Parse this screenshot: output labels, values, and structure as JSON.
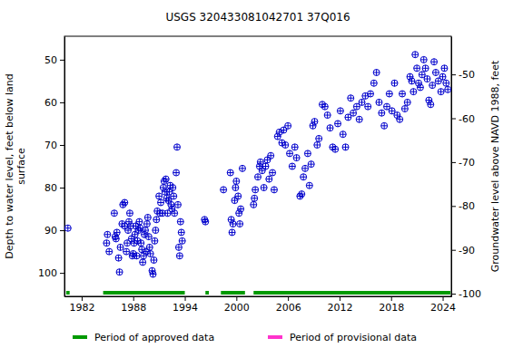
{
  "chart_data": {
    "type": "scatter",
    "title": "USGS 320433081042701 37Q016",
    "ylabel": [
      "Depth to water level, feet below land",
      "surface"
    ],
    "y2label": "Groundwater level above NAVD 1988, feet",
    "color": "#0000cc",
    "marker": "circle-plus",
    "xlim": [
      1980,
      2025
    ],
    "xticks": [
      1982,
      1988,
      1994,
      2000,
      2006,
      2012,
      2018,
      2024
    ],
    "ylim": [
      44.5,
      105.5
    ],
    "yticks": [
      50,
      60,
      70,
      80,
      90,
      100
    ],
    "y2lim": [
      -100.6,
      -41.3
    ],
    "y2ticks": [
      -50,
      -60,
      -70,
      -80,
      -90,
      -100
    ],
    "x": [
      1980.4,
      1984.9,
      1985.0,
      1985.2,
      1985.8,
      1985.9,
      1986.0,
      1986.1,
      1986.3,
      1986.4,
      1986.5,
      1986.7,
      1986.8,
      1987.0,
      1987.0,
      1987.2,
      1987.3,
      1987.4,
      1987.5,
      1987.6,
      1987.7,
      1987.8,
      1987.9,
      1988.0,
      1988.1,
      1988.2,
      1988.3,
      1988.4,
      1988.5,
      1988.6,
      1988.7,
      1988.8,
      1988.9,
      1989.0,
      1989.1,
      1989.2,
      1989.3,
      1989.4,
      1989.5,
      1989.6,
      1989.7,
      1989.8,
      1989.9,
      1990.0,
      1990.2,
      1990.3,
      1990.4,
      1990.5,
      1990.6,
      1990.7,
      1990.8,
      1991.0,
      1991.1,
      1991.2,
      1991.4,
      1991.5,
      1991.6,
      1991.7,
      1991.8,
      1991.9,
      1992.0,
      1992.1,
      1992.2,
      1992.3,
      1992.4,
      1992.5,
      1992.6,
      1992.7,
      1992.8,
      1993.0,
      1993.1,
      1993.2,
      1993.3,
      1993.4,
      1993.5,
      1993.6,
      1993.7,
      1996.3,
      1996.4,
      1998.5,
      1999.3,
      1999.4,
      1999.5,
      1999.6,
      1999.8,
      1999.9,
      2000.0,
      2000.2,
      2000.3,
      2000.4,
      2000.5,
      2000.7,
      2002.0,
      2002.1,
      2002.2,
      2002.5,
      2002.7,
      2002.8,
      2003.0,
      2003.2,
      2003.4,
      2003.6,
      2003.8,
      2004.0,
      2004.2,
      2004.4,
      2004.8,
      2005.0,
      2005.3,
      2005.5,
      2005.7,
      2006.0,
      2006.2,
      2006.5,
      2006.8,
      2007.0,
      2007.4,
      2007.6,
      2007.8,
      2008.0,
      2008.3,
      2008.5,
      2008.7,
      2008.9,
      2009.1,
      2009.4,
      2009.6,
      2010.0,
      2010.3,
      2010.6,
      2010.9,
      2011.2,
      2011.5,
      2011.8,
      2012.1,
      2012.4,
      2012.7,
      2013.0,
      2013.3,
      2013.6,
      2014.0,
      2014.3,
      2014.6,
      2015.0,
      2015.3,
      2015.6,
      2016.0,
      2016.3,
      2016.6,
      2016.9,
      2017.2,
      2017.5,
      2017.8,
      2018.1,
      2018.4,
      2018.7,
      2019.0,
      2019.3,
      2019.6,
      2019.9,
      2020.2,
      2020.4,
      2020.6,
      2020.8,
      2021.0,
      2021.2,
      2021.4,
      2021.6,
      2021.8,
      2022.0,
      2022.2,
      2022.4,
      2022.6,
      2022.8,
      2023.0,
      2023.2,
      2023.5,
      2023.8,
      2024.0,
      2024.2,
      2024.4,
      2024.6
    ],
    "values": [
      89.5,
      93,
      91,
      95,
      86,
      91.5,
      92,
      90.5,
      96.5,
      99.8,
      94,
      88.5,
      84,
      83.5,
      89,
      95,
      93,
      90,
      88,
      86,
      89,
      92,
      96,
      95.5,
      93,
      91,
      89,
      96,
      92.5,
      90,
      88,
      89.5,
      93,
      94.5,
      97.5,
      96,
      91,
      90,
      95,
      88.5,
      87,
      91.5,
      94,
      95.5,
      99.5,
      100.3,
      97,
      92.5,
      90,
      87.5,
      85.5,
      82,
      86,
      83.5,
      86,
      80,
      78.5,
      81,
      78,
      82.5,
      86,
      83,
      81,
      79.5,
      84,
      85,
      80,
      82,
      86,
      76.5,
      70.5,
      84,
      94,
      96,
      88,
      90.5,
      92.5,
      87.5,
      88,
      80.5,
      76.5,
      87.5,
      90.5,
      88.5,
      83,
      80,
      78.5,
      82,
      86,
      88.5,
      85,
      75.5,
      84,
      82.5,
      80.5,
      77.5,
      75,
      74,
      76,
      80,
      75,
      73.5,
      78,
      72.5,
      76.5,
      80.5,
      68,
      67,
      69.5,
      66.5,
      70,
      65.5,
      72,
      75,
      70.5,
      73,
      82,
      81.5,
      77.5,
      75.5,
      72,
      79.5,
      74.5,
      65.5,
      64.5,
      70,
      68.5,
      60.5,
      61,
      63,
      66,
      70.5,
      71,
      65,
      62,
      67.5,
      70.5,
      63.5,
      59,
      62.5,
      61,
      64,
      60,
      58.5,
      61,
      58,
      55.5,
      53,
      60,
      62.5,
      65.5,
      61,
      58,
      62,
      55.5,
      63,
      64,
      58,
      61.5,
      60,
      54,
      55,
      57.5,
      48.8,
      52,
      55.5,
      56.5,
      53.5,
      50,
      52,
      54.5,
      59.5,
      60.5,
      56,
      50.5,
      53,
      55,
      57.5,
      54,
      52,
      55.5,
      57
    ],
    "periods": [
      {
        "name": "Period of approved data",
        "color": "#009900",
        "ranges": [
          [
            1980.2,
            1980.6
          ],
          [
            1984.5,
            1994.0
          ],
          [
            1996.4,
            1996.8
          ],
          [
            1998.2,
            2001.0
          ],
          [
            2002.0,
            2024.9
          ]
        ]
      },
      {
        "name": "Period of provisional data",
        "color": "#ff33cc",
        "ranges": []
      }
    ]
  }
}
